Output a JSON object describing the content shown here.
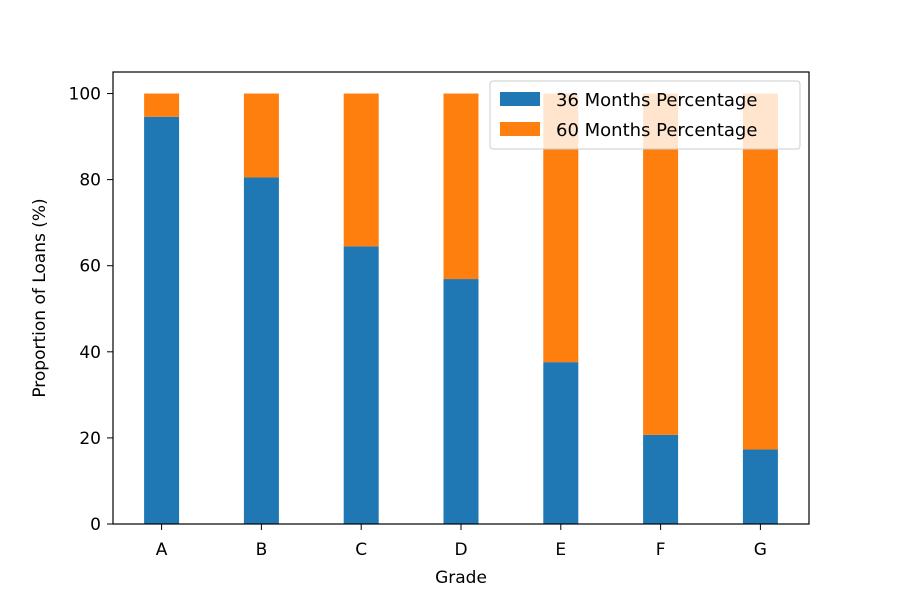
{
  "chart_data": {
    "type": "bar",
    "stacked": true,
    "categories": [
      "A",
      "B",
      "C",
      "D",
      "E",
      "F",
      "G"
    ],
    "series": [
      {
        "name": "36 Months Percentage",
        "color": "#1f77b4",
        "values": [
          94.6,
          80.5,
          64.5,
          56.9,
          37.6,
          20.7,
          17.3
        ]
      },
      {
        "name": "60 Months Percentage",
        "color": "#ff7f0e",
        "values": [
          5.4,
          19.5,
          35.5,
          43.1,
          62.4,
          79.3,
          82.7
        ]
      }
    ],
    "xlabel": "Grade",
    "ylabel": "Proportion of Loans (%)",
    "ylim": [
      0,
      105
    ],
    "yticks": [
      0,
      20,
      40,
      60,
      80,
      100
    ],
    "grid": false,
    "legend_position": "top-right"
  }
}
